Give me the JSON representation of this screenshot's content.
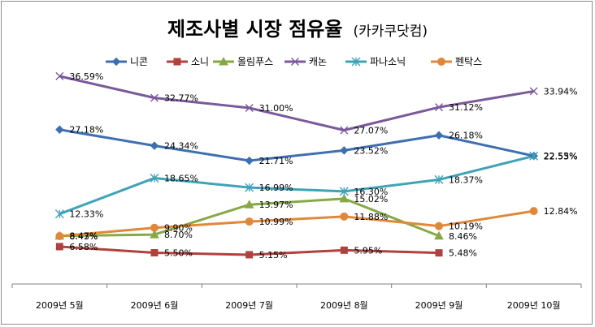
{
  "chart_data": {
    "type": "line",
    "title": "제조사별 시장 점유율",
    "subtitle": "(카카쿠닷컴)",
    "categories": [
      "2009년 5월",
      "2009년 6월",
      "2009년 7월",
      "2009년 8월",
      "2009년 9월",
      "2009년 10월"
    ],
    "value_format": "percent",
    "ylim": [
      0,
      40
    ],
    "grid": false,
    "legend_position": "top",
    "series": [
      {
        "name": "니콘",
        "color": "#3e6fb0",
        "marker": "diamond",
        "values": [
          27.18,
          24.34,
          21.71,
          23.52,
          26.18,
          22.55
        ],
        "labels": [
          "27.18%",
          "24.34%",
          "21.71%",
          "23.52%",
          "26.18%",
          "22.55%"
        ]
      },
      {
        "name": "소니",
        "color": "#b0413e",
        "marker": "square",
        "values": [
          6.58,
          5.5,
          5.15,
          5.95,
          5.48,
          null
        ],
        "labels": [
          "6.58%",
          "5.50%",
          "5.15%",
          "5.95%",
          "5.48%",
          null
        ]
      },
      {
        "name": "올림푸스",
        "color": "#86a846",
        "marker": "triangle",
        "values": [
          8.47,
          8.7,
          13.97,
          15.02,
          8.46,
          null
        ],
        "labels": [
          "8.47%",
          "8.70%",
          "13.97%",
          "15.02%",
          "8.46%",
          null
        ]
      },
      {
        "name": "캐논",
        "color": "#7a5a9a",
        "marker": "x",
        "values": [
          36.59,
          32.77,
          31.0,
          27.07,
          31.12,
          33.94
        ],
        "labels": [
          "36.59%",
          "32.77%",
          "31.00%",
          "27.07%",
          "31.12%",
          "33.94%"
        ]
      },
      {
        "name": "파나소닉",
        "color": "#3fa3b8",
        "marker": "asterisk",
        "values": [
          12.33,
          18.65,
          16.99,
          16.3,
          18.37,
          22.53
        ],
        "labels": [
          "12.33%",
          "18.65%",
          "16.99%",
          "16.30%",
          "18.37%",
          "22.53%"
        ]
      },
      {
        "name": "펜탁스",
        "color": "#e0883a",
        "marker": "circle",
        "values": [
          8.43,
          9.9,
          10.99,
          11.88,
          10.19,
          12.84
        ],
        "labels": [
          "8.43%",
          "9.90%",
          "10.99%",
          "11.88%",
          "10.19%",
          "12.84%"
        ]
      }
    ]
  }
}
